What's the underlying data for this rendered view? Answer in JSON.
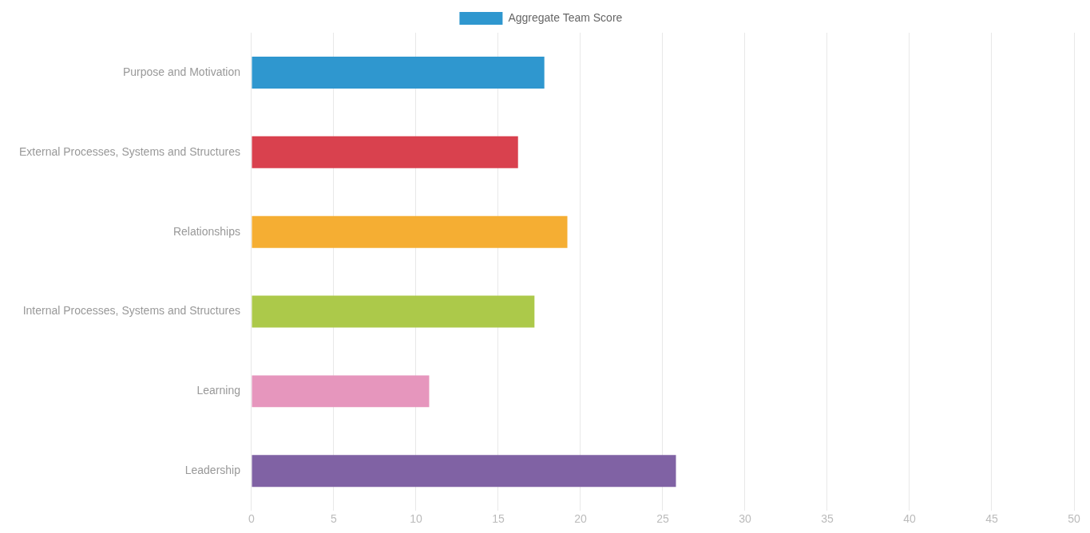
{
  "chart_data": {
    "type": "bar",
    "orientation": "horizontal",
    "categories": [
      "Purpose and Motivation",
      "External Processes, Systems and Structures",
      "Relationships",
      "Internal Processes, Systems and Structures",
      "Learning",
      "Leadership"
    ],
    "series": [
      {
        "name": "Aggregate Team Score",
        "colors": [
          "#2f97cf",
          "#d9414e",
          "#f5ae33",
          "#acc94a",
          "#e696bd",
          "#8062a4"
        ],
        "values": [
          17.8,
          16.2,
          19.2,
          17.2,
          10.8,
          25.8
        ]
      }
    ],
    "xlim": [
      0,
      50
    ],
    "xticks": [
      0,
      5,
      10,
      15,
      20,
      25,
      30,
      35,
      40,
      45,
      50
    ],
    "grid": "x",
    "legend": "top"
  }
}
